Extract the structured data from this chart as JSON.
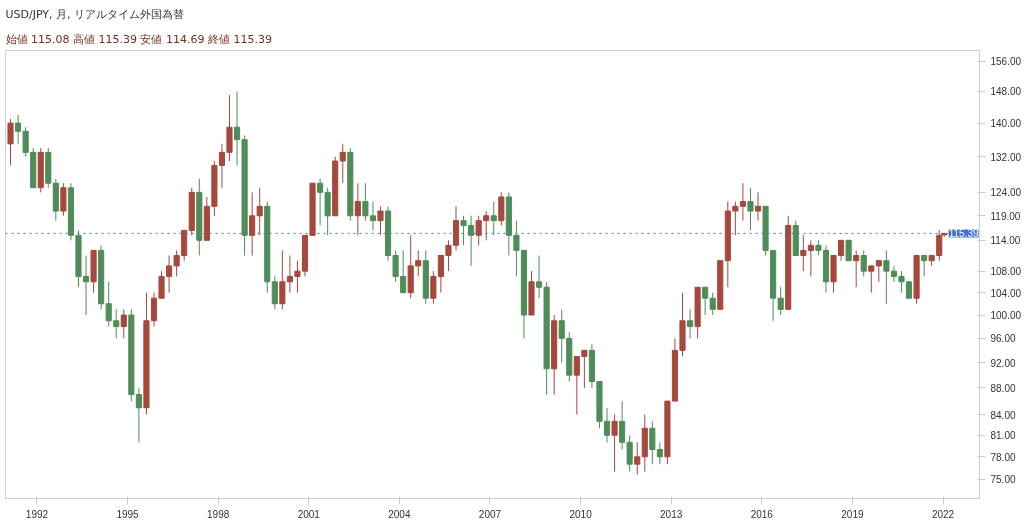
{
  "chart_data": {
    "type": "candlestick",
    "title": "USD/JPY, 月, リアルタイム外国為替",
    "subtitle": "始値 115.08  高値 115.39  安値 114.69  終値 115.39",
    "x": [
      "1991-02",
      "1991-05",
      "1991-08",
      "1991-11",
      "1992-02",
      "1992-05",
      "1992-08",
      "1992-11",
      "1993-02",
      "1993-05",
      "1993-08",
      "1993-11",
      "1994-02",
      "1994-05",
      "1994-08",
      "1994-11",
      "1995-02",
      "1995-05",
      "1995-08",
      "1995-11",
      "1996-02",
      "1996-05",
      "1996-08",
      "1996-11",
      "1997-02",
      "1997-05",
      "1997-08",
      "1997-11",
      "1998-02",
      "1998-05",
      "1998-08",
      "1998-11",
      "1999-02",
      "1999-05",
      "1999-08",
      "1999-11",
      "2000-02",
      "2000-05",
      "2000-08",
      "2000-11",
      "2001-02",
      "2001-05",
      "2001-08",
      "2001-11",
      "2002-02",
      "2002-05",
      "2002-08",
      "2002-11",
      "2003-02",
      "2003-05",
      "2003-08",
      "2003-11",
      "2004-02",
      "2004-05",
      "2004-08",
      "2004-11",
      "2005-02",
      "2005-05",
      "2005-08",
      "2005-11",
      "2006-02",
      "2006-05",
      "2006-08",
      "2006-11",
      "2007-02",
      "2007-05",
      "2007-08",
      "2007-11",
      "2008-02",
      "2008-05",
      "2008-08",
      "2008-11",
      "2009-02",
      "2009-05",
      "2009-08",
      "2009-11",
      "2010-02",
      "2010-05",
      "2010-08",
      "2010-11",
      "2011-02",
      "2011-05",
      "2011-08",
      "2011-11",
      "2012-02",
      "2012-05",
      "2012-08",
      "2012-11",
      "2013-02",
      "2013-05",
      "2013-08",
      "2013-11",
      "2014-02",
      "2014-05",
      "2014-08",
      "2014-11",
      "2015-02",
      "2015-05",
      "2015-08",
      "2015-11",
      "2016-02",
      "2016-05",
      "2016-08",
      "2016-11",
      "2017-02",
      "2017-05",
      "2017-08",
      "2017-11",
      "2018-02",
      "2018-05",
      "2018-08",
      "2018-11",
      "2019-02",
      "2019-05",
      "2019-08",
      "2019-11",
      "2020-02",
      "2020-05",
      "2020-08",
      "2020-11",
      "2021-02",
      "2021-05",
      "2021-08",
      "2021-11",
      "2022-01"
    ],
    "ohlc": [
      [
        135,
        141,
        130,
        140
      ],
      [
        140,
        142,
        135,
        138
      ],
      [
        138,
        139,
        132,
        133
      ],
      [
        133,
        134,
        125,
        125
      ],
      [
        125,
        134,
        124,
        133
      ],
      [
        133,
        134,
        125,
        126
      ],
      [
        126,
        127,
        118,
        120
      ],
      [
        120,
        126,
        119,
        125
      ],
      [
        125,
        126,
        114,
        115
      ],
      [
        115,
        116,
        105,
        107
      ],
      [
        107,
        111,
        100,
        106
      ],
      [
        106,
        112,
        104,
        112
      ],
      [
        112,
        113,
        101,
        102
      ],
      [
        102,
        106,
        98,
        99
      ],
      [
        99,
        101,
        96,
        98
      ],
      [
        98,
        101,
        96,
        100
      ],
      [
        100,
        101,
        86,
        87
      ],
      [
        87,
        88,
        80,
        85
      ],
      [
        85,
        104,
        84,
        99
      ],
      [
        99,
        104,
        98,
        103
      ],
      [
        103,
        108,
        103,
        107
      ],
      [
        107,
        111,
        104,
        109
      ],
      [
        109,
        112,
        107,
        111
      ],
      [
        111,
        116,
        110,
        116
      ],
      [
        116,
        125,
        115,
        124
      ],
      [
        124,
        127,
        111,
        114
      ],
      [
        114,
        123,
        114,
        121
      ],
      [
        121,
        131,
        119,
        130
      ],
      [
        130,
        135,
        125,
        133
      ],
      [
        133,
        147,
        131,
        139
      ],
      [
        139,
        148,
        130,
        136
      ],
      [
        136,
        137,
        111,
        115
      ],
      [
        115,
        124,
        111,
        119
      ],
      [
        119,
        125,
        115,
        121
      ],
      [
        121,
        122,
        104,
        106
      ],
      [
        106,
        107,
        101,
        102
      ],
      [
        102,
        112,
        101,
        106
      ],
      [
        106,
        111,
        104,
        107
      ],
      [
        107,
        110,
        104,
        108
      ],
      [
        108,
        115,
        107,
        115
      ],
      [
        115,
        126,
        115,
        126
      ],
      [
        126,
        127,
        117,
        124
      ],
      [
        124,
        125,
        115,
        119
      ],
      [
        119,
        132,
        119,
        131
      ],
      [
        131,
        135,
        126,
        133
      ],
      [
        133,
        134,
        118,
        119
      ],
      [
        119,
        126,
        115,
        122
      ],
      [
        122,
        126,
        118,
        119
      ],
      [
        119,
        122,
        116,
        118
      ],
      [
        118,
        121,
        115,
        120
      ],
      [
        120,
        121,
        110,
        111
      ],
      [
        111,
        112,
        106,
        107
      ],
      [
        107,
        112,
        104,
        104
      ],
      [
        104,
        115,
        103,
        109
      ],
      [
        109,
        112,
        107,
        110
      ],
      [
        110,
        112,
        102,
        103
      ],
      [
        103,
        108,
        102,
        107
      ],
      [
        107,
        111,
        104,
        111
      ],
      [
        111,
        114,
        108,
        113
      ],
      [
        113,
        121,
        112,
        118
      ],
      [
        118,
        119,
        113,
        117
      ],
      [
        117,
        119,
        109,
        115
      ],
      [
        115,
        119,
        113,
        118
      ],
      [
        118,
        120,
        114,
        119
      ],
      [
        119,
        122,
        115,
        118
      ],
      [
        118,
        124,
        117,
        123
      ],
      [
        123,
        124,
        111,
        115
      ],
      [
        115,
        118,
        107,
        112
      ],
      [
        112,
        112,
        96,
        100
      ],
      [
        100,
        108,
        100,
        106
      ],
      [
        106,
        111,
        103,
        105
      ],
      [
        105,
        106,
        87,
        91
      ],
      [
        91,
        100,
        87,
        99
      ],
      [
        99,
        101,
        92,
        96
      ],
      [
        96,
        97,
        89,
        90
      ],
      [
        90,
        93,
        84,
        93
      ],
      [
        93,
        94,
        88,
        94
      ],
      [
        94,
        95,
        88,
        89
      ],
      [
        89,
        89,
        82,
        83
      ],
      [
        83,
        85,
        80,
        81
      ],
      [
        81,
        84,
        76,
        83
      ],
      [
        83,
        86,
        79,
        80
      ],
      [
        80,
        81,
        76,
        77
      ],
      [
        77,
        80,
        75.6,
        78
      ],
      [
        78,
        84,
        76,
        82
      ],
      [
        82,
        83,
        77,
        79
      ],
      [
        79,
        80,
        77,
        78
      ],
      [
        78,
        86,
        77,
        86
      ],
      [
        86,
        96,
        86,
        94
      ],
      [
        94,
        104,
        93,
        99
      ],
      [
        99,
        101,
        96,
        98
      ],
      [
        98,
        105,
        96,
        105
      ],
      [
        105,
        105,
        100,
        103
      ],
      [
        103,
        104,
        100,
        101
      ],
      [
        101,
        110,
        101,
        110
      ],
      [
        110,
        122,
        105,
        120
      ],
      [
        120,
        122,
        115,
        121
      ],
      [
        121,
        126,
        118,
        122
      ],
      [
        122,
        125,
        116,
        120
      ],
      [
        120,
        124,
        118,
        121
      ],
      [
        121,
        121,
        111,
        112
      ],
      [
        112,
        112,
        99,
        103
      ],
      [
        103,
        105,
        100,
        101
      ],
      [
        101,
        119,
        101,
        117
      ],
      [
        117,
        118,
        111,
        111
      ],
      [
        111,
        115,
        108,
        112
      ],
      [
        112,
        114,
        107,
        113
      ],
      [
        113,
        114,
        111,
        112
      ],
      [
        112,
        113,
        104,
        106
      ],
      [
        106,
        111,
        104,
        111
      ],
      [
        111,
        114,
        110,
        114
      ],
      [
        114,
        114,
        110,
        110
      ],
      [
        110,
        112,
        105,
        111
      ],
      [
        111,
        112,
        107,
        108
      ],
      [
        108,
        109,
        104,
        109
      ],
      [
        109,
        110,
        106,
        110
      ],
      [
        110,
        112,
        102,
        108
      ],
      [
        108,
        109,
        106,
        107
      ],
      [
        107,
        108,
        104,
        106
      ],
      [
        106,
        106,
        103,
        103
      ],
      [
        103,
        111,
        102,
        111
      ],
      [
        111,
        111,
        107,
        110
      ],
      [
        110,
        111,
        109,
        111
      ],
      [
        111,
        116,
        110,
        115
      ],
      [
        115.08,
        115.39,
        114.69,
        115.39
      ]
    ],
    "colors": [
      "#a5483e",
      "#4f8c5a",
      "#4f8c5a",
      "#4f8c5a",
      "#a5483e",
      "#4f8c5a",
      "#4f8c5a",
      "#a5483e",
      "#4f8c5a",
      "#4f8c5a",
      "#4f8c5a",
      "#a5483e",
      "#4f8c5a",
      "#4f8c5a",
      "#4f8c5a",
      "#a5483e",
      "#4f8c5a",
      "#4f8c5a",
      "#a5483e",
      "#a5483e",
      "#a5483e",
      "#a5483e",
      "#a5483e",
      "#a5483e",
      "#a5483e",
      "#4f8c5a",
      "#a5483e",
      "#a5483e",
      "#a5483e",
      "#a5483e",
      "#4f8c5a",
      "#4f8c5a",
      "#a5483e",
      "#a5483e",
      "#4f8c5a",
      "#4f8c5a",
      "#a5483e",
      "#a5483e",
      "#a5483e",
      "#a5483e",
      "#a5483e",
      "#4f8c5a",
      "#4f8c5a",
      "#a5483e",
      "#a5483e",
      "#4f8c5a",
      "#a5483e",
      "#4f8c5a",
      "#4f8c5a",
      "#a5483e",
      "#4f8c5a",
      "#4f8c5a",
      "#4f8c5a",
      "#a5483e",
      "#a5483e",
      "#4f8c5a",
      "#a5483e",
      "#a5483e",
      "#a5483e",
      "#a5483e",
      "#4f8c5a",
      "#4f8c5a",
      "#a5483e",
      "#a5483e",
      "#4f8c5a",
      "#a5483e",
      "#4f8c5a",
      "#4f8c5a",
      "#4f8c5a",
      "#a5483e",
      "#4f8c5a",
      "#4f8c5a",
      "#a5483e",
      "#4f8c5a",
      "#4f8c5a",
      "#a5483e",
      "#a5483e",
      "#4f8c5a",
      "#4f8c5a",
      "#4f8c5a",
      "#a5483e",
      "#4f8c5a",
      "#4f8c5a",
      "#a5483e",
      "#a5483e",
      "#4f8c5a",
      "#4f8c5a",
      "#a5483e",
      "#a5483e",
      "#a5483e",
      "#4f8c5a",
      "#a5483e",
      "#4f8c5a",
      "#4f8c5a",
      "#a5483e",
      "#a5483e",
      "#a5483e",
      "#a5483e",
      "#4f8c5a",
      "#a5483e",
      "#4f8c5a",
      "#4f8c5a",
      "#4f8c5a",
      "#a5483e",
      "#4f8c5a",
      "#a5483e",
      "#a5483e",
      "#4f8c5a",
      "#4f8c5a",
      "#a5483e",
      "#a5483e",
      "#4f8c5a",
      "#a5483e",
      "#4f8c5a",
      "#a5483e",
      "#a5483e",
      "#4f8c5a",
      "#4f8c5a",
      "#4f8c5a",
      "#4f8c5a",
      "#a5483e",
      "#4f8c5a",
      "#a5483e",
      "#a5483e",
      "#a5483e"
    ],
    "xlim": [
      "1990-12",
      "2023-03"
    ],
    "xticks": [
      "1992",
      "1995",
      "1998",
      "2001",
      "2004",
      "2007",
      "2010",
      "2013",
      "2016",
      "2019",
      "2022"
    ],
    "log": "y",
    "ylim": [
      72.5,
      159
    ],
    "yticks": [
      {
        "value": 75,
        "label": "75.00"
      },
      {
        "value": 78,
        "label": "78.00"
      },
      {
        "value": 81,
        "label": "81.00"
      },
      {
        "value": 84,
        "label": "84.00"
      },
      {
        "value": 88,
        "label": "88.00"
      },
      {
        "value": 92,
        "label": "92.00"
      },
      {
        "value": 96,
        "label": "96.00"
      },
      {
        "value": 100,
        "label": "100.00"
      },
      {
        "value": 104,
        "label": "104.00"
      },
      {
        "value": 108,
        "label": "108.00"
      },
      {
        "value": 114,
        "label": "114.00"
      },
      {
        "value": 119,
        "label": "119.00"
      },
      {
        "value": 124,
        "label": "124.00"
      },
      {
        "value": 132,
        "label": "132.00"
      },
      {
        "value": 140,
        "label": "140.00"
      },
      {
        "value": 148,
        "label": "148.00"
      },
      {
        "value": 156,
        "label": "156.00"
      }
    ],
    "ref_lines": [
      {
        "axis": "y",
        "value": 115.39,
        "label": "115.39",
        "color": "#3f6fd8",
        "line_style": "dotted"
      }
    ]
  }
}
